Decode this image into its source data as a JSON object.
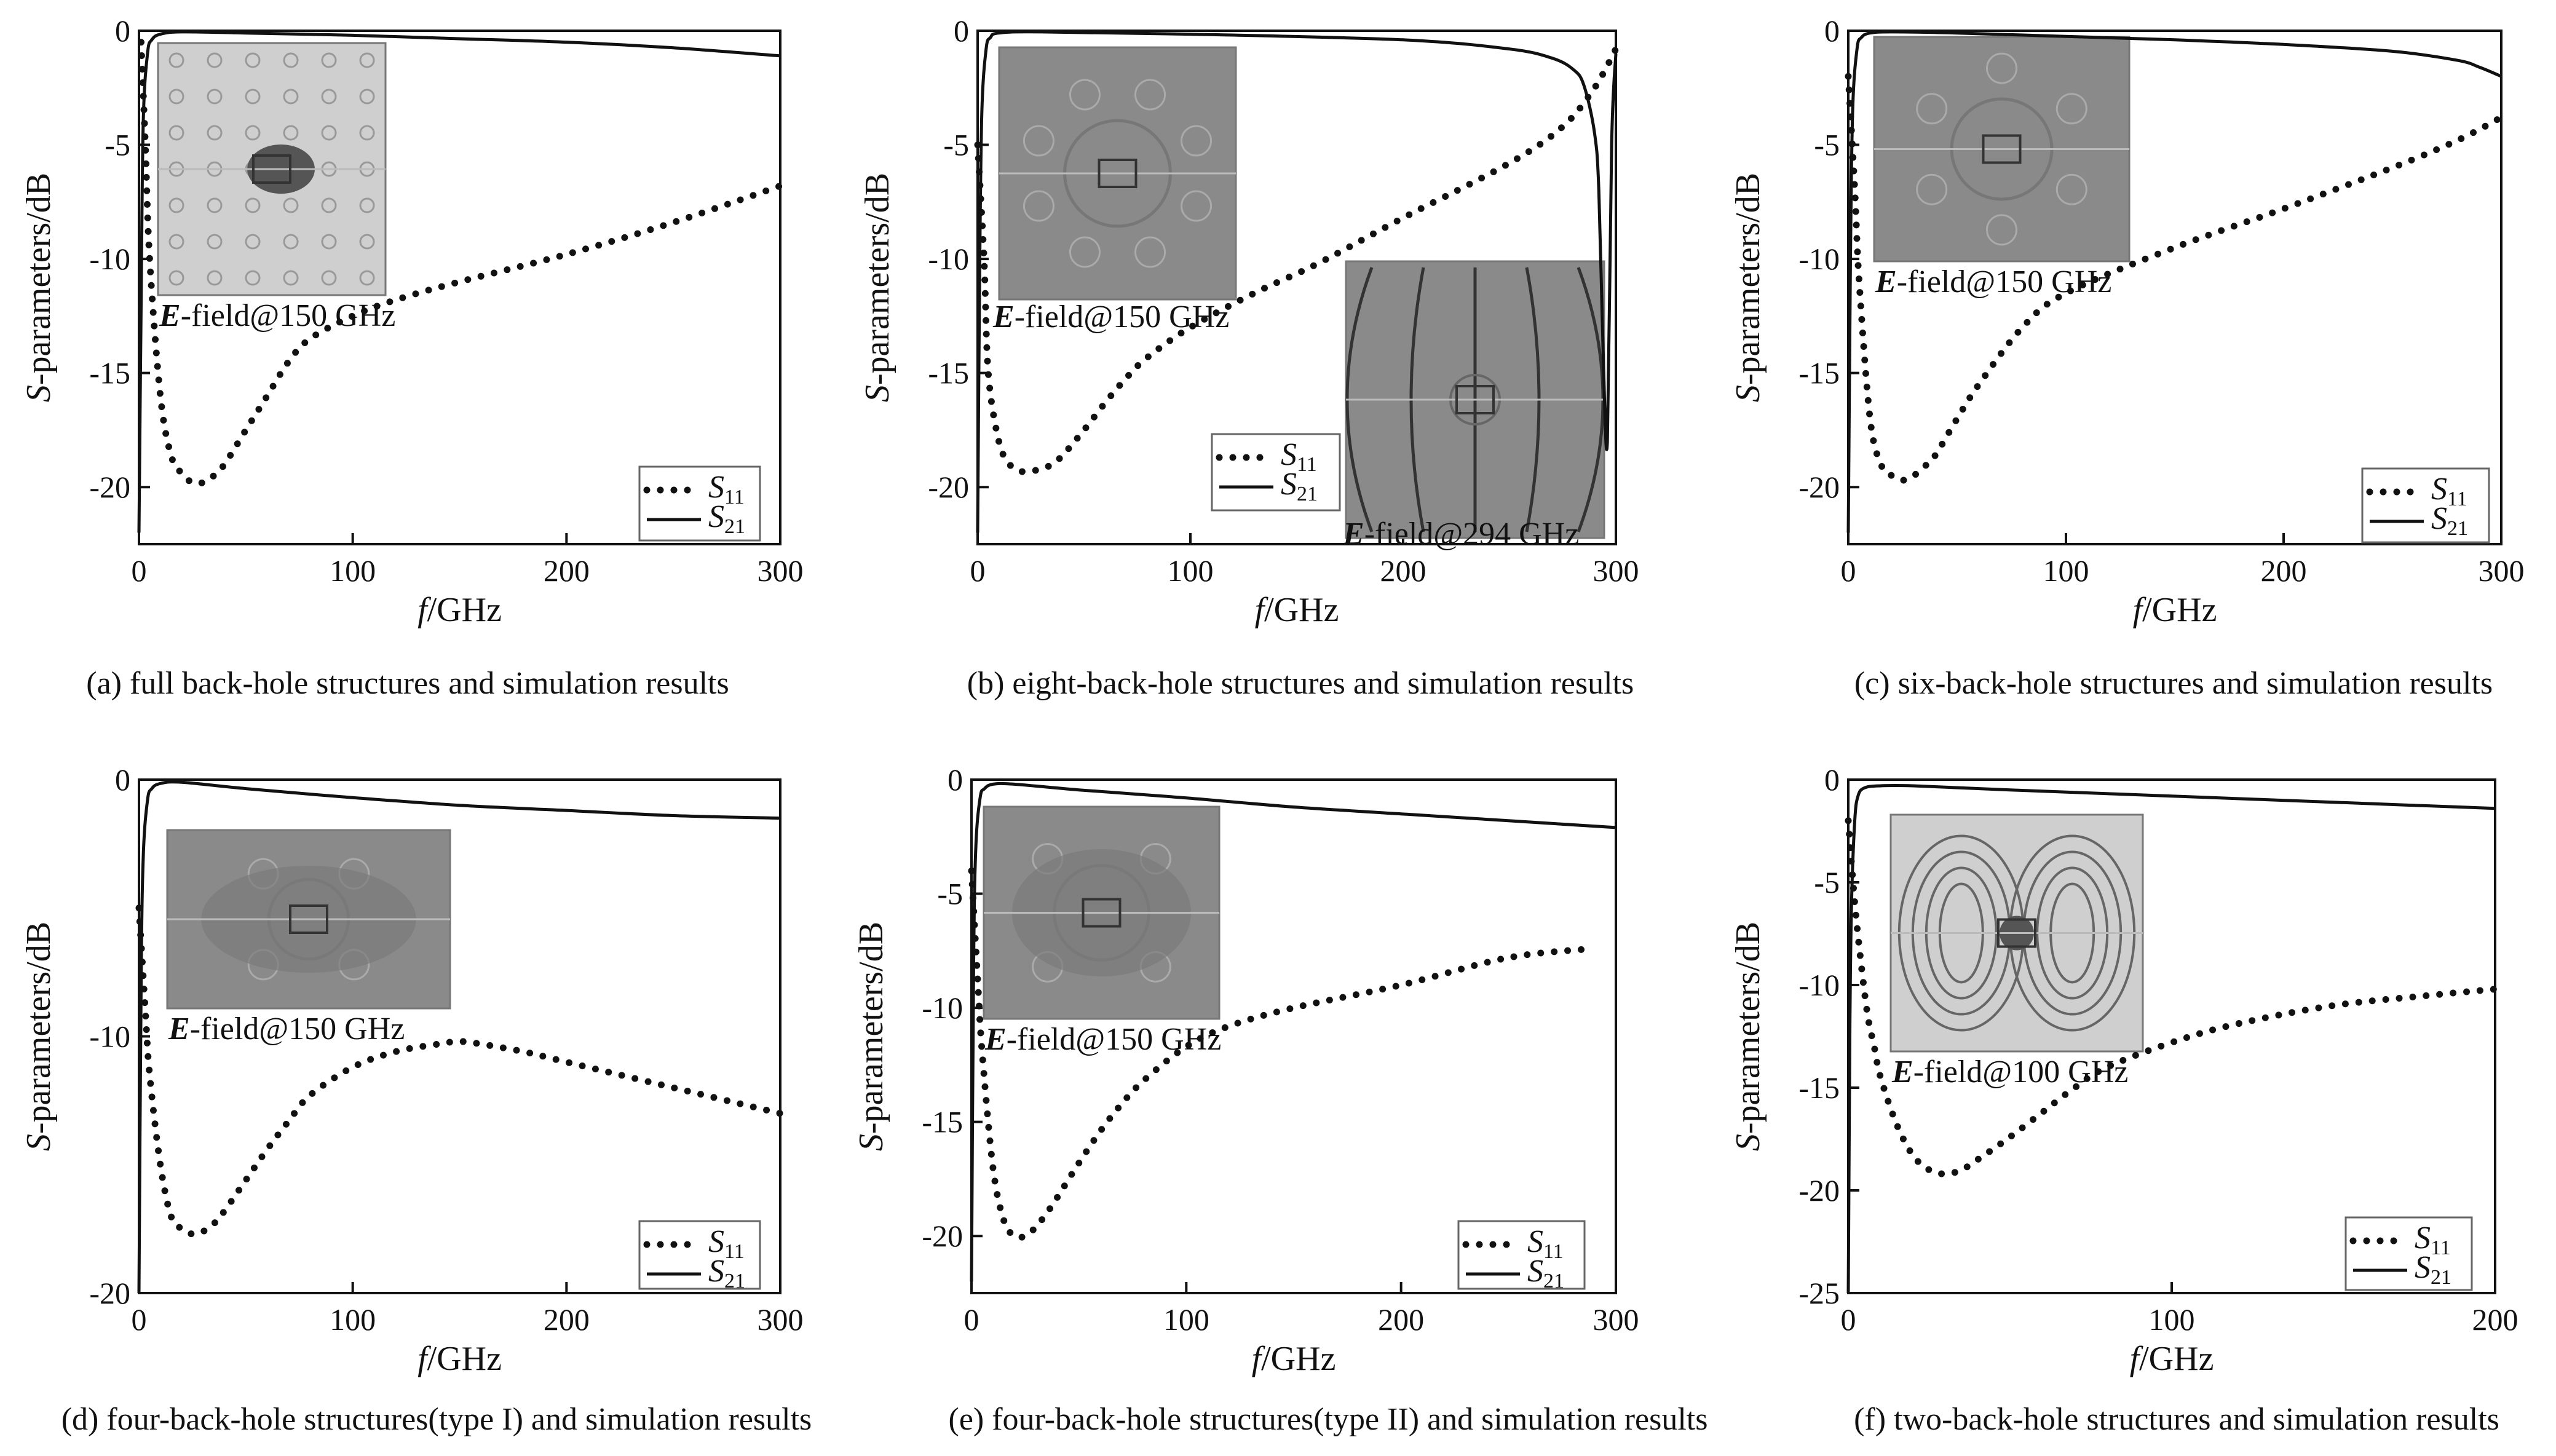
{
  "chart_data": [
    {
      "id": "a",
      "type": "line",
      "caption": "(a) full back-hole structures and simulation results",
      "xlabel": "f/GHz",
      "ylabel": "S-parameters/dB",
      "xlim": [
        0,
        300
      ],
      "ylim": [
        -22.5,
        0
      ],
      "xticks": [
        0,
        100,
        200,
        300
      ],
      "yticks": [
        0,
        -5,
        -10,
        -15,
        -20
      ],
      "inset": {
        "label": "E-field@150 GHz",
        "pattern": "grid"
      },
      "legend": {
        "position": "bottom-right",
        "entries": [
          "S11",
          "S21"
        ]
      },
      "series": [
        {
          "name": "S11",
          "style": "dotted",
          "x": [
            1,
            3,
            5,
            10,
            15,
            20,
            25,
            30,
            35,
            40,
            50,
            60,
            70,
            80,
            100,
            120,
            150,
            200,
            250,
            300
          ],
          "y": [
            -0.5,
            -5,
            -10,
            -16,
            -18.6,
            -19.4,
            -19.8,
            -19.8,
            -19.5,
            -19,
            -17.5,
            -16,
            -14.5,
            -13.5,
            -12.5,
            -11.8,
            -11,
            -9.8,
            -8.4,
            -6.8
          ]
        },
        {
          "name": "S21",
          "style": "solid",
          "x": [
            0,
            1,
            2,
            4,
            6,
            10,
            20,
            50,
            100,
            150,
            200,
            250,
            300
          ],
          "y": [
            -22,
            -12,
            -4,
            -1,
            -0.4,
            -0.15,
            -0.05,
            -0.1,
            -0.2,
            -0.35,
            -0.5,
            -0.75,
            -1.1
          ]
        }
      ]
    },
    {
      "id": "b",
      "type": "line",
      "caption": "(b) eight-back-hole structures and simulation results",
      "xlabel": "f/GHz",
      "ylabel": "S-parameters/dB",
      "xlim": [
        0,
        300
      ],
      "ylim": [
        -22.5,
        0
      ],
      "xticks": [
        0,
        100,
        200,
        300
      ],
      "yticks": [
        0,
        -5,
        -10,
        -15,
        -20
      ],
      "insets": [
        {
          "label": "E-field@150 GHz",
          "pattern": "ring8"
        },
        {
          "label": "E-field@294 GHz",
          "pattern": "field-lines"
        }
      ],
      "legend": {
        "position": "bottom-middle",
        "entries": [
          "S11",
          "S21"
        ]
      },
      "series": [
        {
          "name": "S11",
          "style": "dotted",
          "x": [
            0,
            3,
            5,
            10,
            15,
            20,
            25,
            30,
            35,
            40,
            50,
            60,
            70,
            80,
            100,
            130,
            160,
            200,
            250,
            275,
            290,
            300
          ],
          "y": [
            -5,
            -10,
            -15,
            -18,
            -19,
            -19.3,
            -19.3,
            -19.2,
            -19,
            -18.6,
            -17.5,
            -16.3,
            -15.2,
            -14.3,
            -13,
            -11.5,
            -10.2,
            -8.2,
            -5.8,
            -4.2,
            -2.5,
            -0.8
          ]
        },
        {
          "name": "S21",
          "style": "solid",
          "x": [
            0,
            1,
            2,
            4,
            6,
            10,
            30,
            100,
            200,
            250,
            270,
            280,
            285,
            290,
            292,
            294,
            296,
            298,
            300
          ],
          "y": [
            -22,
            -10,
            -3.5,
            -0.8,
            -0.3,
            -0.1,
            -0.05,
            -0.15,
            -0.4,
            -0.8,
            -1.2,
            -1.7,
            -2.4,
            -4.5,
            -7,
            -14,
            -18,
            -5,
            -1
          ]
        }
      ]
    },
    {
      "id": "c",
      "type": "line",
      "caption": "(c) six-back-hole structures and simulation results",
      "xlabel": "f/GHz",
      "ylabel": "S-parameters/dB",
      "xlim": [
        0,
        300
      ],
      "ylim": [
        -22.5,
        0
      ],
      "xticks": [
        0,
        100,
        200,
        300
      ],
      "yticks": [
        0,
        -5,
        -10,
        -15,
        -20
      ],
      "inset": {
        "label": "E-field@150 GHz",
        "pattern": "ring6"
      },
      "legend": {
        "position": "bottom-right",
        "entries": [
          "S11",
          "S21"
        ]
      },
      "series": [
        {
          "name": "S11",
          "style": "dotted",
          "x": [
            0,
            3,
            5,
            10,
            15,
            20,
            25,
            30,
            35,
            40,
            50,
            60,
            80,
            100,
            150,
            200,
            250,
            280,
            300
          ],
          "y": [
            -2,
            -7,
            -11,
            -17,
            -19,
            -19.5,
            -19.7,
            -19.5,
            -19.1,
            -18.6,
            -17,
            -15.5,
            -13,
            -11.5,
            -9.5,
            -7.8,
            -6,
            -4.8,
            -3.8
          ]
        },
        {
          "name": "S21",
          "style": "solid",
          "x": [
            0,
            1,
            2,
            4,
            6,
            10,
            20,
            50,
            100,
            150,
            200,
            250,
            280,
            290,
            300
          ],
          "y": [
            -22,
            -10,
            -3.5,
            -0.8,
            -0.3,
            -0.1,
            -0.05,
            -0.1,
            -0.25,
            -0.4,
            -0.6,
            -0.9,
            -1.3,
            -1.6,
            -2
          ]
        }
      ]
    },
    {
      "id": "d",
      "type": "line",
      "caption": "(d) four-back-hole structures(type I) and simulation results",
      "xlabel": "f/GHz",
      "ylabel": "S-parameters/dB",
      "xlim": [
        0,
        300
      ],
      "ylim": [
        -20,
        0
      ],
      "xticks": [
        0,
        100,
        200,
        300
      ],
      "yticks": [
        0,
        -10,
        -20
      ],
      "inset": {
        "label": "E-field@150 GHz",
        "pattern": "blob4"
      },
      "legend": {
        "position": "bottom-right",
        "entries": [
          "S11",
          "S21"
        ]
      },
      "series": [
        {
          "name": "S11",
          "style": "dotted",
          "x": [
            0,
            3,
            5,
            10,
            15,
            20,
            25,
            30,
            35,
            40,
            50,
            60,
            70,
            80,
            100,
            120,
            140,
            150,
            160,
            180,
            200,
            250,
            300
          ],
          "y": [
            -5,
            -9,
            -11.5,
            -15,
            -17,
            -17.5,
            -17.7,
            -17.6,
            -17.3,
            -16.8,
            -15.6,
            -14.4,
            -13.3,
            -12.3,
            -11.2,
            -10.6,
            -10.3,
            -10.2,
            -10.3,
            -10.6,
            -11,
            -12,
            -13
          ]
        },
        {
          "name": "S21",
          "style": "solid",
          "x": [
            0,
            1,
            2,
            4,
            6,
            10,
            20,
            50,
            100,
            150,
            200,
            250,
            300
          ],
          "y": [
            -20,
            -8,
            -3,
            -0.8,
            -0.35,
            -0.15,
            -0.1,
            -0.35,
            -0.7,
            -1,
            -1.2,
            -1.4,
            -1.5
          ]
        }
      ]
    },
    {
      "id": "e",
      "type": "line",
      "caption": "(e) four-back-hole structures(type II) and simulation results",
      "xlabel": "f/GHz",
      "ylabel": "S-parameters/dB",
      "xlim": [
        0,
        300
      ],
      "ylim": [
        -22.5,
        0
      ],
      "xticks": [
        0,
        100,
        200,
        300
      ],
      "yticks": [
        0,
        -5,
        -10,
        -15,
        -20
      ],
      "inset": {
        "label": "E-field@150 GHz",
        "pattern": "blob4b"
      },
      "legend": {
        "position": "bottom-right",
        "entries": [
          "S11",
          "S21"
        ]
      },
      "series": [
        {
          "name": "S11",
          "style": "dotted",
          "x": [
            0,
            3,
            5,
            10,
            15,
            20,
            25,
            30,
            35,
            40,
            50,
            60,
            70,
            80,
            100,
            120,
            150,
            200,
            250,
            290
          ],
          "y": [
            -4,
            -9,
            -12,
            -17,
            -19.3,
            -20,
            -20,
            -19.6,
            -19,
            -18.3,
            -16.8,
            -15.4,
            -14.2,
            -13.2,
            -11.7,
            -10.8,
            -10,
            -9,
            -7.8,
            -7.4
          ]
        },
        {
          "name": "S21",
          "style": "solid",
          "x": [
            0,
            1,
            2,
            4,
            6,
            10,
            20,
            50,
            100,
            150,
            200,
            250,
            300
          ],
          "y": [
            -22,
            -8,
            -3,
            -0.8,
            -0.4,
            -0.2,
            -0.2,
            -0.45,
            -0.8,
            -1.2,
            -1.5,
            -1.8,
            -2.1
          ]
        }
      ]
    },
    {
      "id": "f",
      "type": "line",
      "caption": "(f) two-back-hole structures and simulation results",
      "xlabel": "f/GHz",
      "ylabel": "S-parameters/dB",
      "xlim": [
        0,
        200
      ],
      "ylim": [
        -25,
        0
      ],
      "xticks": [
        0,
        100,
        200
      ],
      "yticks": [
        0,
        -5,
        -10,
        -15,
        -20,
        -25
      ],
      "inset": {
        "label": "E-field@100 GHz",
        "pattern": "loops"
      },
      "legend": {
        "position": "bottom-right",
        "entries": [
          "S11",
          "S21"
        ]
      },
      "series": [
        {
          "name": "S11",
          "style": "dotted",
          "x": [
            0,
            2,
            4,
            6,
            8,
            10,
            15,
            20,
            25,
            30,
            35,
            40,
            50,
            60,
            70,
            80,
            100,
            120,
            150,
            180,
            200
          ],
          "y": [
            -2,
            -6,
            -9,
            -11.5,
            -13,
            -14.5,
            -16.8,
            -18.3,
            -19,
            -19.2,
            -19,
            -18.5,
            -17.4,
            -16.2,
            -15,
            -14,
            -12.8,
            -11.9,
            -11,
            -10.5,
            -10.2
          ]
        },
        {
          "name": "S21",
          "style": "solid",
          "x": [
            0,
            0.5,
            1,
            2,
            3,
            5,
            10,
            20,
            50,
            100,
            150,
            200
          ],
          "y": [
            -25,
            -12,
            -6,
            -2,
            -0.8,
            -0.4,
            -0.3,
            -0.3,
            -0.5,
            -0.8,
            -1.1,
            -1.4
          ]
        }
      ]
    }
  ]
}
